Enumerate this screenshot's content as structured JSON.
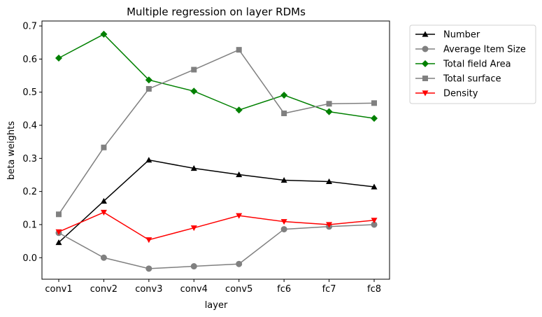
{
  "chart_data": {
    "type": "line",
    "title": "Multiple regression on layer RDMs",
    "xlabel": "layer",
    "ylabel": "beta weights",
    "categories": [
      "conv1",
      "conv2",
      "conv3",
      "conv4",
      "conv5",
      "fc6",
      "fc7",
      "fc8"
    ],
    "ylim": [
      -0.065,
      0.715
    ],
    "yticks": [
      0.0,
      0.1,
      0.2,
      0.3,
      0.4,
      0.5,
      0.6,
      0.7
    ],
    "ytick_labels": [
      "0.0",
      "0.1",
      "0.2",
      "0.3",
      "0.4",
      "0.5",
      "0.6",
      "0.7"
    ],
    "grid": false,
    "legend_position": "outside-top-right",
    "series": [
      {
        "name": "Number",
        "color": "#000000",
        "marker": "triangle-up",
        "values": [
          0.046,
          0.171,
          0.295,
          0.27,
          0.251,
          0.234,
          0.23,
          0.214
        ]
      },
      {
        "name": "Average Item Size",
        "color": "#808080",
        "marker": "circle",
        "values": [
          0.075,
          0.0,
          -0.033,
          -0.026,
          -0.019,
          0.086,
          0.094,
          0.1
        ]
      },
      {
        "name": "Total field Area",
        "color": "#008000",
        "marker": "diamond",
        "values": [
          0.603,
          0.675,
          0.537,
          0.503,
          0.446,
          0.491,
          0.441,
          0.421
        ]
      },
      {
        "name": "Total surface",
        "color": "#808080",
        "marker": "square",
        "values": [
          0.131,
          0.333,
          0.51,
          0.568,
          0.628,
          0.436,
          0.465,
          0.467
        ]
      },
      {
        "name": "Density",
        "color": "#ff0000",
        "marker": "triangle-down",
        "values": [
          0.078,
          0.137,
          0.054,
          0.09,
          0.127,
          0.109,
          0.1,
          0.113
        ]
      }
    ]
  }
}
